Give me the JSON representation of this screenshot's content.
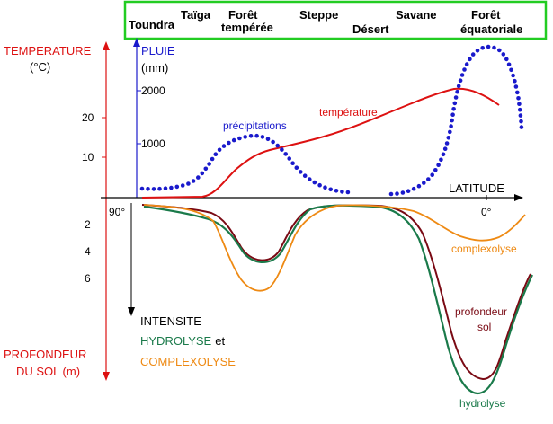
{
  "zones": [
    "Toundra",
    "Taïga",
    "Forêt",
    "tempérée",
    "Steppe",
    "Désert",
    "Savane",
    "Forêt",
    "équatoriale"
  ],
  "left_axis": {
    "temperature_label": "TEMPERATURE",
    "temperature_unit": "(°C)",
    "temperature_ticks": [
      "20",
      "10"
    ],
    "rain_label": "PLUIE",
    "rain_unit": "(mm)",
    "rain_ticks": [
      "2000",
      "1000"
    ],
    "depth_ticks": [
      "2",
      "4",
      "6"
    ],
    "latitude_left": "90°",
    "depth_label_line1": "PROFONDEUR",
    "depth_label_line2": "DU SOL (m)"
  },
  "right_axis": {
    "latitude_label": "LATITUDE",
    "latitude_right": "0°"
  },
  "curve_labels": {
    "precipitations": "précipitations",
    "temperature": "température",
    "complexolyse": "complexolyse",
    "profondeur_line1": "profondeur",
    "profondeur_line2": "sol",
    "hydrolyse": "hydrolyse"
  },
  "lower_legend": {
    "intensite": "INTENSITE",
    "hydrolyse": "HYDROLYSE",
    "et": "et",
    "complexolyse": "COMPLEXOLYSE"
  },
  "colors": {
    "temperature": "#dd1111",
    "rain": "#1a1acc",
    "profondeur": "#7a0a14",
    "hydrolyse": "#1a7a4a",
    "complexolyse": "#ee8a14",
    "zone_border": "#22cc22"
  }
}
